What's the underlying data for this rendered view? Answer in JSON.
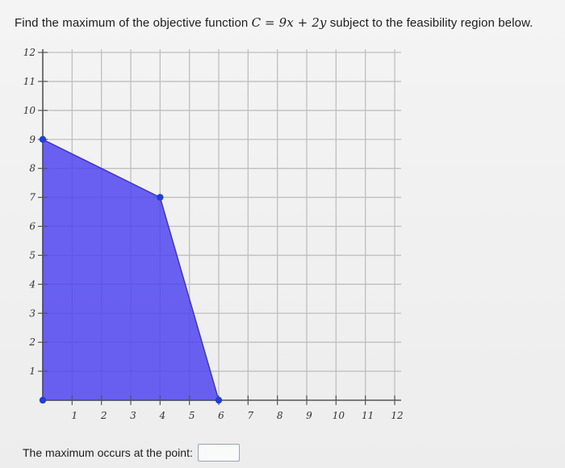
{
  "question": {
    "prefix": "Find the maximum of the objective function ",
    "math": "C = 9x + 2y",
    "suffix": " subject to the feasibility region below."
  },
  "answer": {
    "label": "The maximum occurs at the point:",
    "value": ""
  },
  "colors": {
    "region_fill": "#4a3ff0",
    "vertex": "#1f3fd6",
    "grid": "#bfbfbf",
    "axis": "#555555"
  },
  "chart_data": {
    "type": "area",
    "x_ticks": [
      "1",
      "2",
      "3",
      "4",
      "5",
      "6",
      "7",
      "8",
      "9",
      "10",
      "11",
      "12"
    ],
    "y_ticks": [
      "1",
      "2",
      "3",
      "4",
      "5",
      "6",
      "7",
      "8",
      "9",
      "10",
      "11",
      "12"
    ],
    "xlim": [
      0,
      12
    ],
    "ylim": [
      0,
      12
    ],
    "grid": true,
    "feasible_region": [
      [
        0,
        0
      ],
      [
        0,
        9
      ],
      [
        4,
        7
      ],
      [
        6,
        0
      ]
    ],
    "vertices": [
      [
        0,
        0
      ],
      [
        0,
        9
      ],
      [
        4,
        7
      ],
      [
        6,
        0
      ]
    ]
  }
}
